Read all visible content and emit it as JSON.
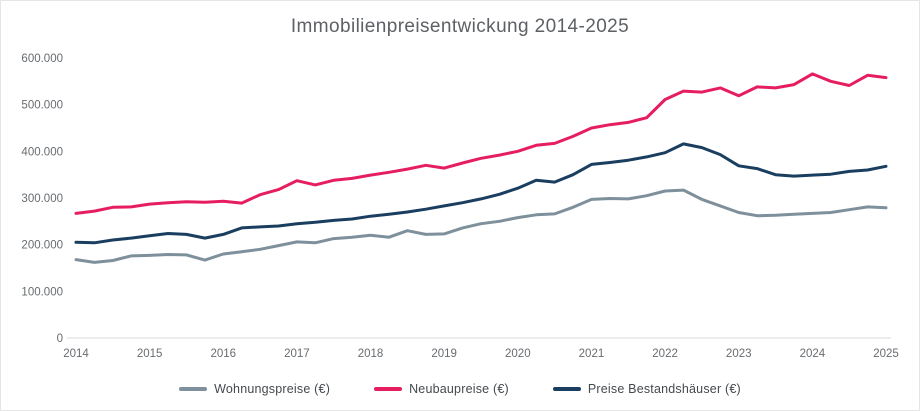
{
  "chart_data": {
    "type": "line",
    "title": "Immobilienpreisentwickung 2014-2025",
    "legend_position": "bottom-center",
    "grid": "off",
    "xlim": [
      2014,
      2025
    ],
    "ylim": [
      0,
      600000
    ],
    "xticks": [
      "2014",
      "2015",
      "2016",
      "2017",
      "2018",
      "2019",
      "2020",
      "2021",
      "2022",
      "2023",
      "2024",
      "2025"
    ],
    "yticks": [
      {
        "label": "0",
        "value": 0
      },
      {
        "label": "100.000",
        "value": 100000
      },
      {
        "label": "200.000",
        "value": 200000
      },
      {
        "label": "300.000",
        "value": 300000
      },
      {
        "label": "400.000",
        "value": 400000
      },
      {
        "label": "500.000",
        "value": 500000
      },
      {
        "label": "600.000",
        "value": 600000
      }
    ],
    "x": [
      2014.0,
      2014.25,
      2014.5,
      2014.75,
      2015.0,
      2015.25,
      2015.5,
      2015.75,
      2016.0,
      2016.25,
      2016.5,
      2016.75,
      2017.0,
      2017.25,
      2017.5,
      2017.75,
      2018.0,
      2018.25,
      2018.5,
      2018.75,
      2019.0,
      2019.25,
      2019.5,
      2019.75,
      2020.0,
      2020.25,
      2020.5,
      2020.75,
      2021.0,
      2021.25,
      2021.5,
      2021.75,
      2022.0,
      2022.25,
      2022.5,
      2022.75,
      2023.0,
      2023.25,
      2023.5,
      2023.75,
      2024.0,
      2024.25,
      2024.5,
      2024.75,
      2025.0
    ],
    "series": [
      {
        "name": "Wohnungspreise (€)",
        "color": "#7e909b",
        "values": [
          168000,
          162000,
          166000,
          176000,
          177000,
          179000,
          178000,
          167000,
          180000,
          185000,
          190000,
          198000,
          206000,
          204000,
          213000,
          216000,
          220000,
          216000,
          230000,
          222000,
          223000,
          236000,
          245000,
          250000,
          258000,
          264000,
          266000,
          280000,
          297000,
          299000,
          298000,
          305000,
          315000,
          317000,
          297000,
          283000,
          269000,
          262000,
          263000,
          265000,
          267000,
          269000,
          275000,
          281000,
          279000
        ]
      },
      {
        "name": "Neubaupreise (€)",
        "color": "#e61e5f",
        "values": [
          267000,
          272000,
          280000,
          281000,
          287000,
          290000,
          292000,
          291000,
          293000,
          289000,
          307000,
          318000,
          337000,
          328000,
          338000,
          342000,
          349000,
          355000,
          362000,
          370000,
          364000,
          375000,
          385000,
          392000,
          400000,
          413000,
          417000,
          432000,
          450000,
          457000,
          462000,
          472000,
          511000,
          529000,
          527000,
          536000,
          519000,
          538000,
          536000,
          543000,
          566000,
          550000,
          541000,
          563000,
          558000
        ]
      },
      {
        "name": "Preise Bestandshäuser (€)",
        "color": "#1a3e5f",
        "values": [
          205000,
          204000,
          210000,
          214000,
          219000,
          224000,
          222000,
          214000,
          222000,
          236000,
          238000,
          240000,
          245000,
          248000,
          252000,
          255000,
          261000,
          265000,
          270000,
          276000,
          283000,
          290000,
          298000,
          308000,
          321000,
          338000,
          334000,
          350000,
          372000,
          376000,
          381000,
          388000,
          397000,
          416000,
          408000,
          393000,
          369000,
          363000,
          350000,
          347000,
          349000,
          351000,
          357000,
          360000,
          368000
        ]
      }
    ],
    "colors": {
      "title_text": "#5d6165",
      "tick_text": "#686c70",
      "legend_text": "#45494e",
      "baseline": "#d9d9d9",
      "background": "#ffffff",
      "card_border": "#e5e5e5"
    }
  }
}
